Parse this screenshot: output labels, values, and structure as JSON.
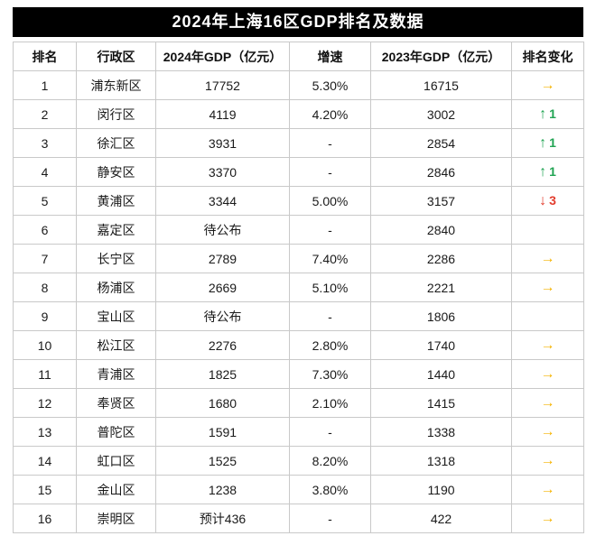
{
  "chart_data": {
    "type": "table",
    "title": "2024年上海16区GDP排名及数据",
    "columns": [
      "排名",
      "行政区",
      "2024年GDP（亿元）",
      "增速",
      "2023年GDP（亿元）",
      "排名变化"
    ],
    "rows": [
      {
        "rank": "1",
        "district": "浦东新区",
        "gdp_2024": "17752",
        "growth": "5.30%",
        "gdp_2023": "16715",
        "change_symbol": "→",
        "change_value": "",
        "change_type": "same"
      },
      {
        "rank": "2",
        "district": "闵行区",
        "gdp_2024": "4119",
        "growth": "4.20%",
        "gdp_2023": "3002",
        "change_symbol": "↑",
        "change_value": "1",
        "change_type": "up"
      },
      {
        "rank": "3",
        "district": "徐汇区",
        "gdp_2024": "3931",
        "growth": "-",
        "gdp_2023": "2854",
        "change_symbol": "↑",
        "change_value": "1",
        "change_type": "up"
      },
      {
        "rank": "4",
        "district": "静安区",
        "gdp_2024": "3370",
        "growth": "-",
        "gdp_2023": "2846",
        "change_symbol": "↑",
        "change_value": "1",
        "change_type": "up"
      },
      {
        "rank": "5",
        "district": "黄浦区",
        "gdp_2024": "3344",
        "growth": "5.00%",
        "gdp_2023": "3157",
        "change_symbol": "↓",
        "change_value": "3",
        "change_type": "down"
      },
      {
        "rank": "6",
        "district": "嘉定区",
        "gdp_2024": "待公布",
        "growth": "-",
        "gdp_2023": "2840",
        "change_symbol": "",
        "change_value": "",
        "change_type": "none"
      },
      {
        "rank": "7",
        "district": "长宁区",
        "gdp_2024": "2789",
        "growth": "7.40%",
        "gdp_2023": "2286",
        "change_symbol": "→",
        "change_value": "",
        "change_type": "same"
      },
      {
        "rank": "8",
        "district": "杨浦区",
        "gdp_2024": "2669",
        "growth": "5.10%",
        "gdp_2023": "2221",
        "change_symbol": "→",
        "change_value": "",
        "change_type": "same"
      },
      {
        "rank": "9",
        "district": "宝山区",
        "gdp_2024": "待公布",
        "growth": "-",
        "gdp_2023": "1806",
        "change_symbol": "",
        "change_value": "",
        "change_type": "none"
      },
      {
        "rank": "10",
        "district": "松江区",
        "gdp_2024": "2276",
        "growth": "2.80%",
        "gdp_2023": "1740",
        "change_symbol": "→",
        "change_value": "",
        "change_type": "same"
      },
      {
        "rank": "11",
        "district": "青浦区",
        "gdp_2024": "1825",
        "growth": "7.30%",
        "gdp_2023": "1440",
        "change_symbol": "→",
        "change_value": "",
        "change_type": "same"
      },
      {
        "rank": "12",
        "district": "奉贤区",
        "gdp_2024": "1680",
        "growth": "2.10%",
        "gdp_2023": "1415",
        "change_symbol": "→",
        "change_value": "",
        "change_type": "same"
      },
      {
        "rank": "13",
        "district": "普陀区",
        "gdp_2024": "1591",
        "growth": "-",
        "gdp_2023": "1338",
        "change_symbol": "→",
        "change_value": "",
        "change_type": "same"
      },
      {
        "rank": "14",
        "district": "虹口区",
        "gdp_2024": "1525",
        "growth": "8.20%",
        "gdp_2023": "1318",
        "change_symbol": "→",
        "change_value": "",
        "change_type": "same"
      },
      {
        "rank": "15",
        "district": "金山区",
        "gdp_2024": "1238",
        "growth": "3.80%",
        "gdp_2023": "1190",
        "change_symbol": "→",
        "change_value": "",
        "change_type": "same"
      },
      {
        "rank": "16",
        "district": "崇明区",
        "gdp_2024": "预计436",
        "growth": "-",
        "gdp_2023": "422",
        "change_symbol": "→",
        "change_value": "",
        "change_type": "same"
      }
    ]
  },
  "colors": {
    "title_bg": "#000000",
    "title_text": "#ffffff",
    "change_same": "#f5b301",
    "change_up": "#21a453",
    "change_down": "#e23c2d",
    "border": "#c9c9c9"
  }
}
